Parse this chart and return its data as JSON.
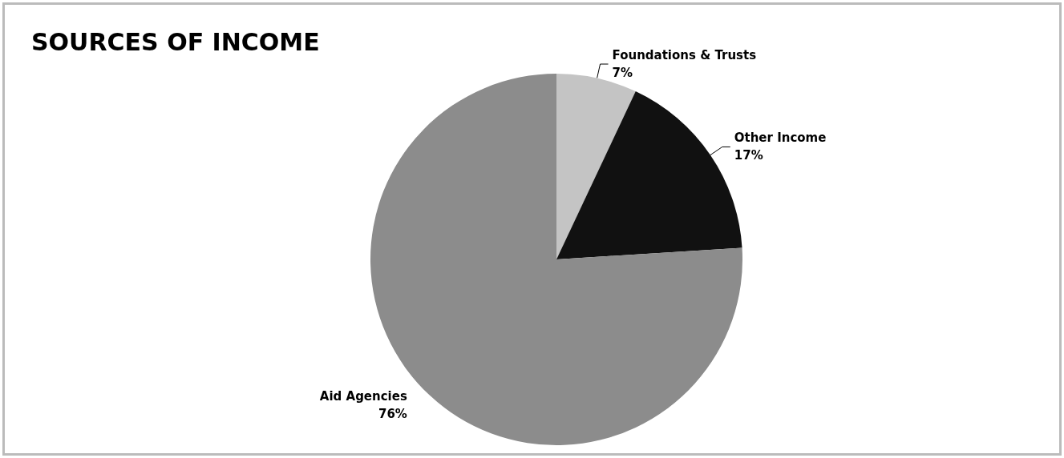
{
  "chart_data": {
    "type": "pie",
    "title": "SOURCES OF INCOME",
    "categories": [
      "Foundations & Trusts",
      "Other Income",
      "Aid Agencies"
    ],
    "values": [
      7,
      17,
      76
    ],
    "value_labels": [
      "7%",
      "17%",
      "76%"
    ],
    "colors": [
      "#c4c4c4",
      "#111111",
      "#8c8c8c"
    ]
  }
}
